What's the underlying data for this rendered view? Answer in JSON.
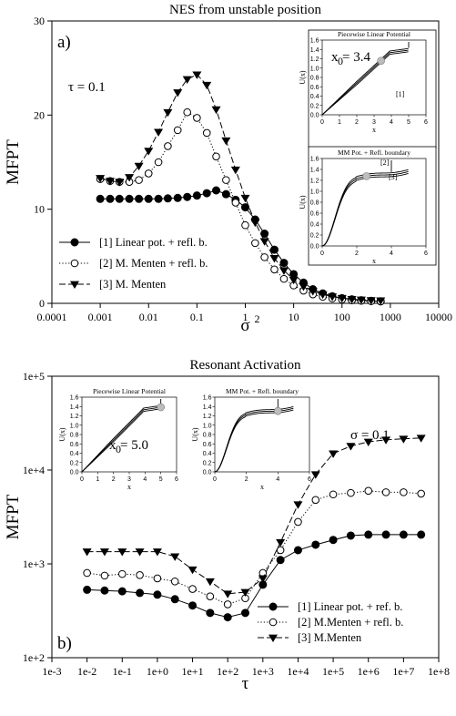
{
  "chart_data": [
    {
      "type": "line",
      "title": "NES from unstable position",
      "panel_label": "a)",
      "xlabel": "σ",
      "xlabel_sup": "2",
      "ylabel": "MFPT",
      "x_scale": "log",
      "xlim": [
        0.0001,
        10000
      ],
      "ylim": [
        0,
        30
      ],
      "x_ticks": [
        "0.0001",
        "0.001",
        "0.01",
        "0.1",
        "1",
        "10",
        "100",
        "1000",
        "10000"
      ],
      "y_ticks": [
        "0",
        "10",
        "20",
        "30"
      ],
      "annotation": "τ = 0.1",
      "legend_position": "bottom-left",
      "series": [
        {
          "name": "[1] Linear pot. + refl. b.",
          "marker": "filled-circle",
          "line": "solid",
          "x": [
            0.001,
            0.0016,
            0.0025,
            0.004,
            0.0063,
            0.01,
            0.016,
            0.025,
            0.04,
            0.063,
            0.1,
            0.16,
            0.25,
            0.4,
            0.63,
            1,
            1.6,
            2.5,
            4,
            6.3,
            10,
            16,
            25,
            40,
            63,
            100,
            160,
            250,
            400,
            630
          ],
          "y": [
            11.1,
            11.1,
            11.1,
            11.1,
            11.1,
            11.1,
            11.1,
            11.15,
            11.2,
            11.3,
            11.45,
            11.7,
            12.0,
            11.6,
            11.0,
            10.2,
            8.9,
            7.4,
            5.7,
            4.3,
            3.1,
            2.2,
            1.5,
            1.05,
            0.75,
            0.55,
            0.42,
            0.33,
            0.27,
            0.22
          ]
        },
        {
          "name": "[2] M. Menten + refl. b.",
          "marker": "open-circle",
          "line": "dotted",
          "x": [
            0.001,
            0.0016,
            0.0025,
            0.004,
            0.0063,
            0.01,
            0.016,
            0.025,
            0.04,
            0.063,
            0.1,
            0.16,
            0.25,
            0.4,
            0.63,
            1,
            1.6,
            2.5,
            4,
            6.3,
            10,
            16,
            25,
            40,
            63,
            100,
            160,
            250,
            400,
            630
          ],
          "y": [
            13.2,
            13.0,
            12.9,
            12.9,
            13.1,
            13.8,
            15.0,
            16.7,
            18.4,
            20.3,
            19.7,
            18.1,
            15.6,
            13.1,
            10.7,
            8.3,
            6.4,
            4.9,
            3.6,
            2.6,
            1.9,
            1.35,
            0.95,
            0.7,
            0.52,
            0.4,
            0.32,
            0.27,
            0.23,
            0.2
          ]
        },
        {
          "name": "[3] M. Menten",
          "marker": "filled-triangle-down",
          "line": "dashed",
          "x": [
            0.001,
            0.0016,
            0.0025,
            0.004,
            0.0063,
            0.01,
            0.016,
            0.025,
            0.04,
            0.063,
            0.1,
            0.16,
            0.25,
            0.4,
            0.63,
            1,
            1.6,
            2.5,
            4,
            6.3,
            10,
            16,
            25,
            40,
            63,
            100,
            160,
            250,
            400,
            630
          ],
          "y": [
            13.3,
            13.0,
            12.9,
            13.4,
            14.6,
            16.2,
            18.2,
            20.3,
            22.4,
            23.8,
            24.3,
            23.2,
            20.6,
            17.3,
            14.2,
            11.2,
            8.6,
            6.6,
            4.8,
            3.5,
            2.5,
            1.8,
            1.3,
            0.95,
            0.72,
            0.56,
            0.45,
            0.38,
            0.33,
            0.3
          ]
        }
      ]
    },
    {
      "type": "line",
      "title": "Resonant Activation",
      "panel_label": "b)",
      "xlabel": "τ",
      "ylabel": "MFPT",
      "x_scale": "log",
      "y_scale": "log",
      "xlim": [
        0.001,
        100000000
      ],
      "ylim": [
        100,
        100000
      ],
      "x_ticks": [
        "1e-3",
        "1e-2",
        "1e-1",
        "1e+0",
        "1e+1",
        "1e+2",
        "1e+3",
        "1e+4",
        "1e+5",
        "1e+6",
        "1e+7",
        "1e+8"
      ],
      "y_ticks": [
        "1e+2",
        "1e+3",
        "1e+4",
        "1e+5"
      ],
      "annotation": "σ = 0.1",
      "legend_position": "bottom-right",
      "series": [
        {
          "name": "[1] Linear pot. + ref. b.",
          "marker": "filled-circle",
          "line": "solid",
          "x": [
            0.01,
            0.0316,
            0.1,
            0.316,
            1,
            3.16,
            10,
            31.6,
            100,
            316,
            1000,
            3162,
            10000,
            31623,
            100000,
            316228,
            1000000,
            3162278,
            10000000,
            31622777
          ],
          "y": [
            530,
            520,
            510,
            490,
            470,
            420,
            360,
            300,
            270,
            300,
            600,
            1100,
            1400,
            1600,
            1800,
            2000,
            2050,
            2050,
            2050,
            2050
          ]
        },
        {
          "name": "[2] M.Menten + refl. b.",
          "marker": "open-circle",
          "line": "dotted",
          "x": [
            0.01,
            0.0316,
            0.1,
            0.316,
            1,
            3.16,
            10,
            31.6,
            100,
            316,
            1000,
            3162,
            10000,
            31623,
            100000,
            316228,
            1000000,
            3162278,
            10000000,
            31622777
          ],
          "y": [
            800,
            750,
            780,
            760,
            700,
            650,
            540,
            450,
            370,
            430,
            800,
            1400,
            2800,
            4800,
            5500,
            5700,
            6000,
            5800,
            5800,
            5600
          ]
        },
        {
          "name": "[3] M.Menten",
          "marker": "filled-triangle-down",
          "line": "dashed",
          "x": [
            0.01,
            0.0316,
            0.1,
            0.316,
            1,
            3.16,
            10,
            31.6,
            100,
            316,
            1000,
            3162,
            10000,
            31623,
            100000,
            316228,
            1000000,
            3162278,
            10000000,
            31622777
          ],
          "y": [
            1350,
            1350,
            1350,
            1350,
            1350,
            1200,
            870,
            650,
            480,
            500,
            700,
            1700,
            4300,
            9000,
            15000,
            18000,
            20000,
            21000,
            21500,
            22000
          ]
        }
      ]
    }
  ],
  "insets": {
    "a_linear": {
      "title": "Piecewise Linear Potential",
      "ylabel": "U(x)",
      "xlabel": "x",
      "x_ticks": [
        "0",
        "1",
        "2",
        "3",
        "4",
        "5",
        "6"
      ],
      "y_ticks": [
        "0.0",
        "0.2",
        "0.4",
        "0.6",
        "0.8",
        "1.0",
        "1.2",
        "1.4",
        "1.6"
      ],
      "annotation": "x",
      "annotation_sub": "0",
      "annotation_value": " = 3.4",
      "curve_label": "[1]"
    },
    "a_mm": {
      "title": "MM Pot. + Refl. boundary",
      "ylabel": "U(x)",
      "xlabel": "x",
      "x_ticks": [
        "0",
        "2",
        "4",
        "6"
      ],
      "y_ticks": [
        "0.0",
        "0.2",
        "0.4",
        "0.6",
        "0.8",
        "1.0",
        "1.2",
        "1.4",
        "1.6"
      ],
      "curve_labels": [
        "[2]",
        "[3]"
      ]
    },
    "b_linear": {
      "title": "Piecewise Linear Potential",
      "ylabel": "U(x)",
      "xlabel": "x",
      "x_ticks": [
        "0",
        "1",
        "2",
        "3",
        "4",
        "5",
        "6"
      ],
      "y_ticks": [
        "0.0",
        "0.2",
        "0.4",
        "0.6",
        "0.8",
        "1.0",
        "1.2",
        "1.4",
        "1.6"
      ],
      "annotation": "x",
      "annotation_sub": "0",
      "annotation_value": " = 5.0"
    },
    "b_mm": {
      "title": "MM Pot. + Refl. boundary",
      "ylabel": "U(x)",
      "xlabel": "x",
      "x_ticks": [
        "0",
        "2",
        "4",
        "6"
      ],
      "y_ticks": [
        "0.0",
        "0.2",
        "0.4",
        "0.6",
        "0.8",
        "1.0",
        "1.2",
        "1.4",
        "1.6"
      ]
    }
  }
}
